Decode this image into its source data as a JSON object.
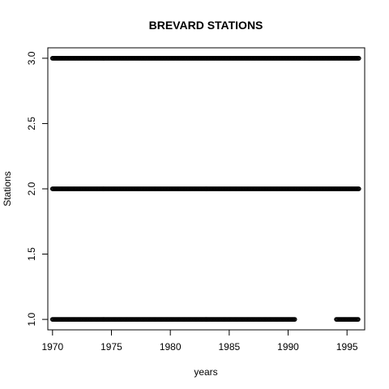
{
  "chart_data": {
    "type": "scatter",
    "title": "BREVARD STATIONS",
    "xlabel": "years",
    "ylabel": "Stations",
    "xlim": [
      1969.6,
      1996.5
    ],
    "ylim": [
      0.92,
      3.08
    ],
    "x_ticks": [
      1970,
      1975,
      1980,
      1985,
      1990,
      1995
    ],
    "x_tick_labels": [
      "1970",
      "1975",
      "1980",
      "1985",
      "1990",
      "1995"
    ],
    "y_ticks": [
      1.0,
      1.5,
      2.0,
      2.5,
      3.0
    ],
    "y_tick_labels": [
      "1.0",
      "1.5",
      "2.0",
      "2.5",
      "3.0"
    ],
    "grid": false,
    "marker": "open-circle",
    "color": "#000000",
    "series": [
      {
        "y": 3,
        "x_ranges": [
          [
            1970.0,
            1996.0
          ]
        ],
        "step": 0.08
      },
      {
        "y": 2,
        "x_ranges": [
          [
            1970.0,
            1996.0
          ]
        ],
        "step": 0.08
      },
      {
        "y": 1,
        "x_ranges": [
          [
            1970.0,
            1990.6
          ],
          [
            1994.1,
            1996.0
          ]
        ],
        "step": 0.08
      }
    ]
  }
}
